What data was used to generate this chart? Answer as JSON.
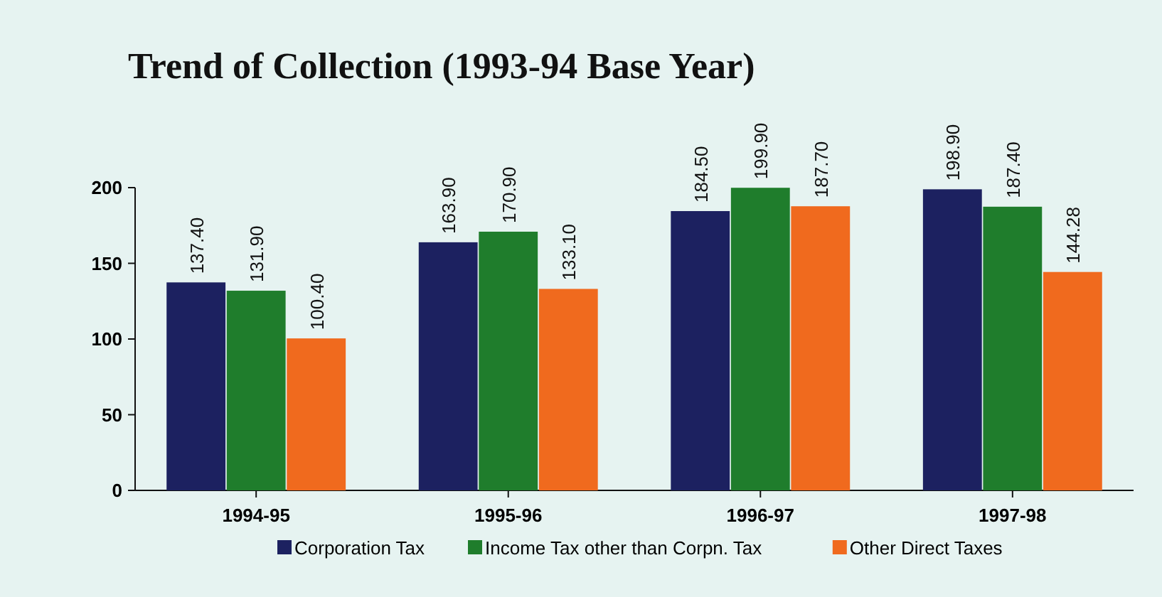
{
  "chart_data": {
    "type": "bar",
    "title": "Trend of Collection (1993-94 Base Year)",
    "categories": [
      "1994-95",
      "1995-96",
      "1996-97",
      "1997-98"
    ],
    "series": [
      {
        "name": "Corporation Tax",
        "color": "#1c2160",
        "values": [
          137.4,
          163.9,
          184.5,
          198.9
        ],
        "value_labels": [
          "137.40",
          "163.90",
          "184.50",
          "198.90"
        ]
      },
      {
        "name": "Income Tax other than Corpn. Tax",
        "color": "#1f7d2c",
        "values": [
          131.9,
          170.9,
          199.9,
          187.4
        ],
        "value_labels": [
          "131.90",
          "170.90",
          "199.90",
          "187.40"
        ]
      },
      {
        "name": "Other Direct Taxes",
        "color": "#f06a1e",
        "values": [
          100.4,
          133.1,
          187.7,
          144.28
        ],
        "value_labels": [
          "100.40",
          "133.10",
          "187.70",
          "144.28"
        ]
      }
    ],
    "ylim": [
      0,
      200
    ],
    "yticks": [
      0,
      50,
      100,
      150,
      200
    ],
    "legend": "bottom",
    "grid": false
  }
}
